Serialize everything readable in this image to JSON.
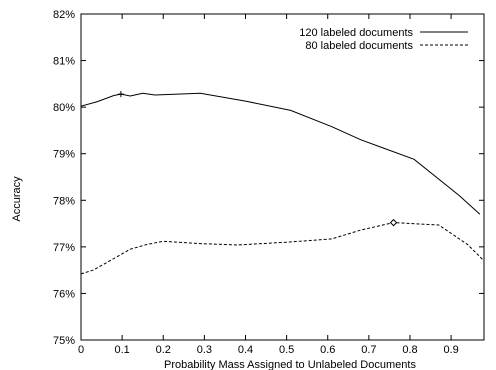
{
  "chart_data": {
    "type": "line",
    "xlabel": "Probability Mass Assigned to Unlabeled Documents",
    "ylabel": "Accuracy",
    "xlim": [
      0,
      0.98
    ],
    "ylim": [
      75,
      82
    ],
    "x_ticks": [
      0,
      0.1,
      0.2,
      0.3,
      0.4,
      0.5,
      0.6,
      0.7,
      0.8,
      0.9
    ],
    "x_tick_labels": [
      "0",
      "0.1",
      "0.2",
      "0.3",
      "0.4",
      "0.5",
      "0.6",
      "0.7",
      "0.8",
      "0.9"
    ],
    "y_ticks": [
      75,
      76,
      77,
      78,
      79,
      80,
      81,
      82
    ],
    "y_tick_labels": [
      "75%",
      "76%",
      "77%",
      "78%",
      "79%",
      "80%",
      "81%",
      "82%"
    ],
    "grid": false,
    "legend_position": "top-right",
    "series": [
      {
        "name": "120 labeled documents",
        "style": "solid",
        "color": "#000000",
        "marker": "+",
        "marker_x": 0.097,
        "x": [
          0,
          0.04,
          0.08,
          0.097,
          0.12,
          0.15,
          0.18,
          0.29,
          0.4,
          0.51,
          0.61,
          0.68,
          0.81,
          0.92,
          0.97
        ],
        "y": [
          80.02,
          80.12,
          80.25,
          80.28,
          80.24,
          80.3,
          80.26,
          80.3,
          80.13,
          79.93,
          79.58,
          79.3,
          78.88,
          78.1,
          77.7
        ]
      },
      {
        "name": "80 labeled documents",
        "style": "dashed",
        "color": "#000000",
        "marker": "diamond",
        "marker_x": 0.76,
        "x": [
          0,
          0.03,
          0.08,
          0.12,
          0.16,
          0.2,
          0.29,
          0.38,
          0.5,
          0.61,
          0.68,
          0.76,
          0.87,
          0.94,
          0.98
        ],
        "y": [
          76.42,
          76.5,
          76.75,
          76.95,
          77.05,
          77.12,
          77.07,
          77.04,
          77.1,
          77.17,
          77.36,
          77.52,
          77.47,
          77.05,
          76.7
        ]
      }
    ]
  }
}
